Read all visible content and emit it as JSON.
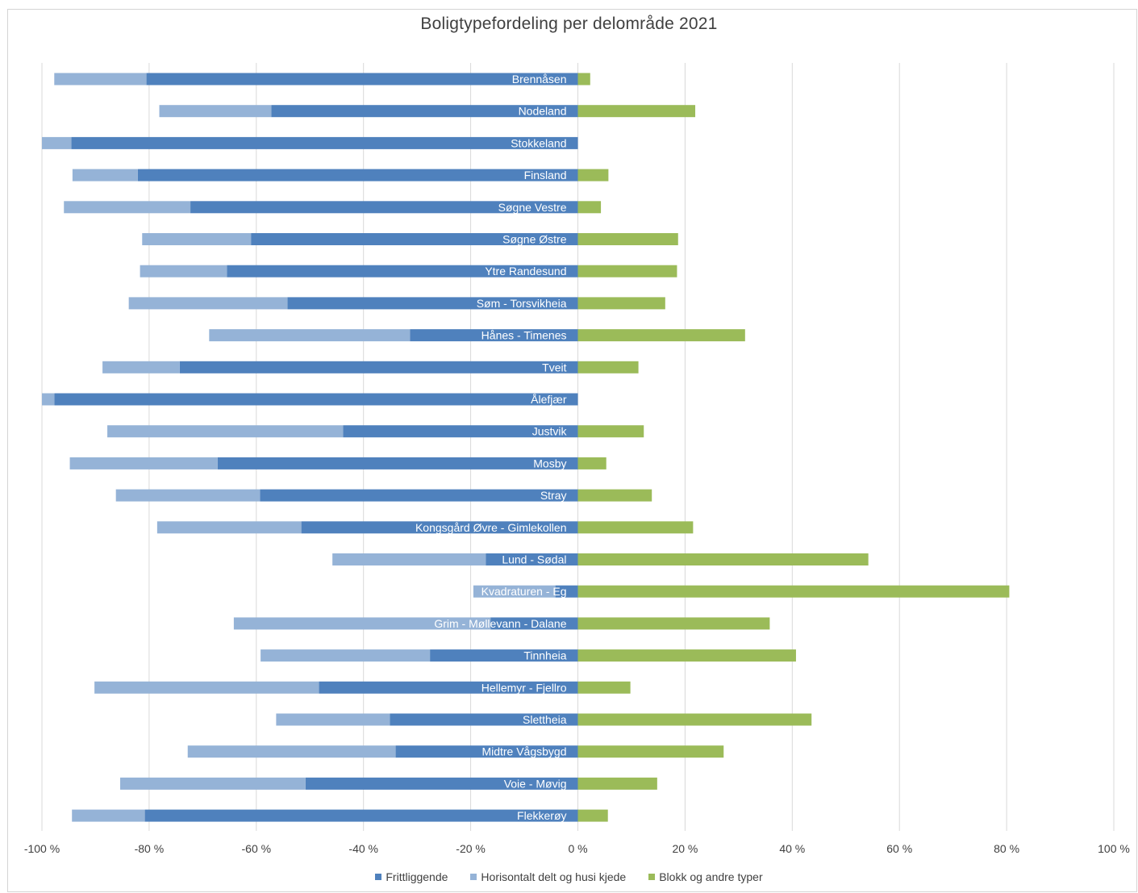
{
  "colors": {
    "frittliggende": "#4f81bd",
    "horisontalt": "#95b3d7",
    "blokk": "#9bbb59",
    "grid": "#d9d9d9",
    "text": "#404040",
    "label_on_bar": "#ffffff"
  },
  "chart_data": {
    "type": "bar",
    "orientation": "horizontal",
    "stacked": true,
    "title": "Boligtypefordeling per delområde 2021",
    "xlim": [
      -100,
      100
    ],
    "x_ticks": [
      -100,
      -80,
      -60,
      -40,
      -20,
      0,
      20,
      40,
      60,
      80,
      100
    ],
    "x_tick_labels": [
      "-100 %",
      "-80 %",
      "-60 %",
      "-40 %",
      "-20 %",
      "0 %",
      "20 %",
      "40 %",
      "60 %",
      "80 %",
      "100 %"
    ],
    "grid": true,
    "legend_position": "bottom",
    "categories": [
      "Brennåsen",
      "Nodeland",
      "Stokkeland",
      "Finsland",
      "Søgne Vestre",
      "Søgne Østre",
      "Ytre Randesund",
      "Søm - Torsvikheia",
      "Hånes - Timenes",
      "Tveit",
      "Ålefjær",
      "Justvik",
      "Mosby",
      "Stray",
      "Kongsgård Øvre - Gimlekollen",
      "Lund - Sødal",
      "Kvadraturen - Eg",
      "Grim - Møllevann - Dalane",
      "Tinnheia",
      "Hellemyr - Fjellro",
      "Slettheia",
      "Midtre Vågsbygd",
      "Voie - Møvig",
      "Flekkerøy"
    ],
    "series": [
      {
        "name": "Frittliggende",
        "values": [
          -80.5,
          -57.2,
          -94.5,
          -82.1,
          -72.3,
          -61.0,
          -65.5,
          -54.2,
          -31.3,
          -74.3,
          -97.7,
          -43.8,
          -67.2,
          -59.3,
          -51.6,
          -17.2,
          -4.2,
          -16.3,
          -27.6,
          -48.3,
          -35.1,
          -34.0,
          -50.8,
          -80.8
        ]
      },
      {
        "name": "Horisontalt delt og husi kjede",
        "values": [
          -17.2,
          -20.9,
          -5.5,
          -12.2,
          -23.6,
          -20.3,
          -16.2,
          -29.6,
          -37.5,
          -14.4,
          -2.3,
          -44.0,
          -27.6,
          -26.9,
          -26.9,
          -28.6,
          -15.3,
          -47.9,
          -31.6,
          -41.9,
          -21.2,
          -38.8,
          -34.6,
          -13.6
        ]
      },
      {
        "name": "Blokk og andre typer",
        "values": [
          2.3,
          21.9,
          0.0,
          5.7,
          4.3,
          18.7,
          18.5,
          16.3,
          31.2,
          11.3,
          0.0,
          12.3,
          5.3,
          13.8,
          21.5,
          54.2,
          80.5,
          35.8,
          40.7,
          9.8,
          43.6,
          27.2,
          14.8,
          5.6
        ]
      }
    ]
  }
}
